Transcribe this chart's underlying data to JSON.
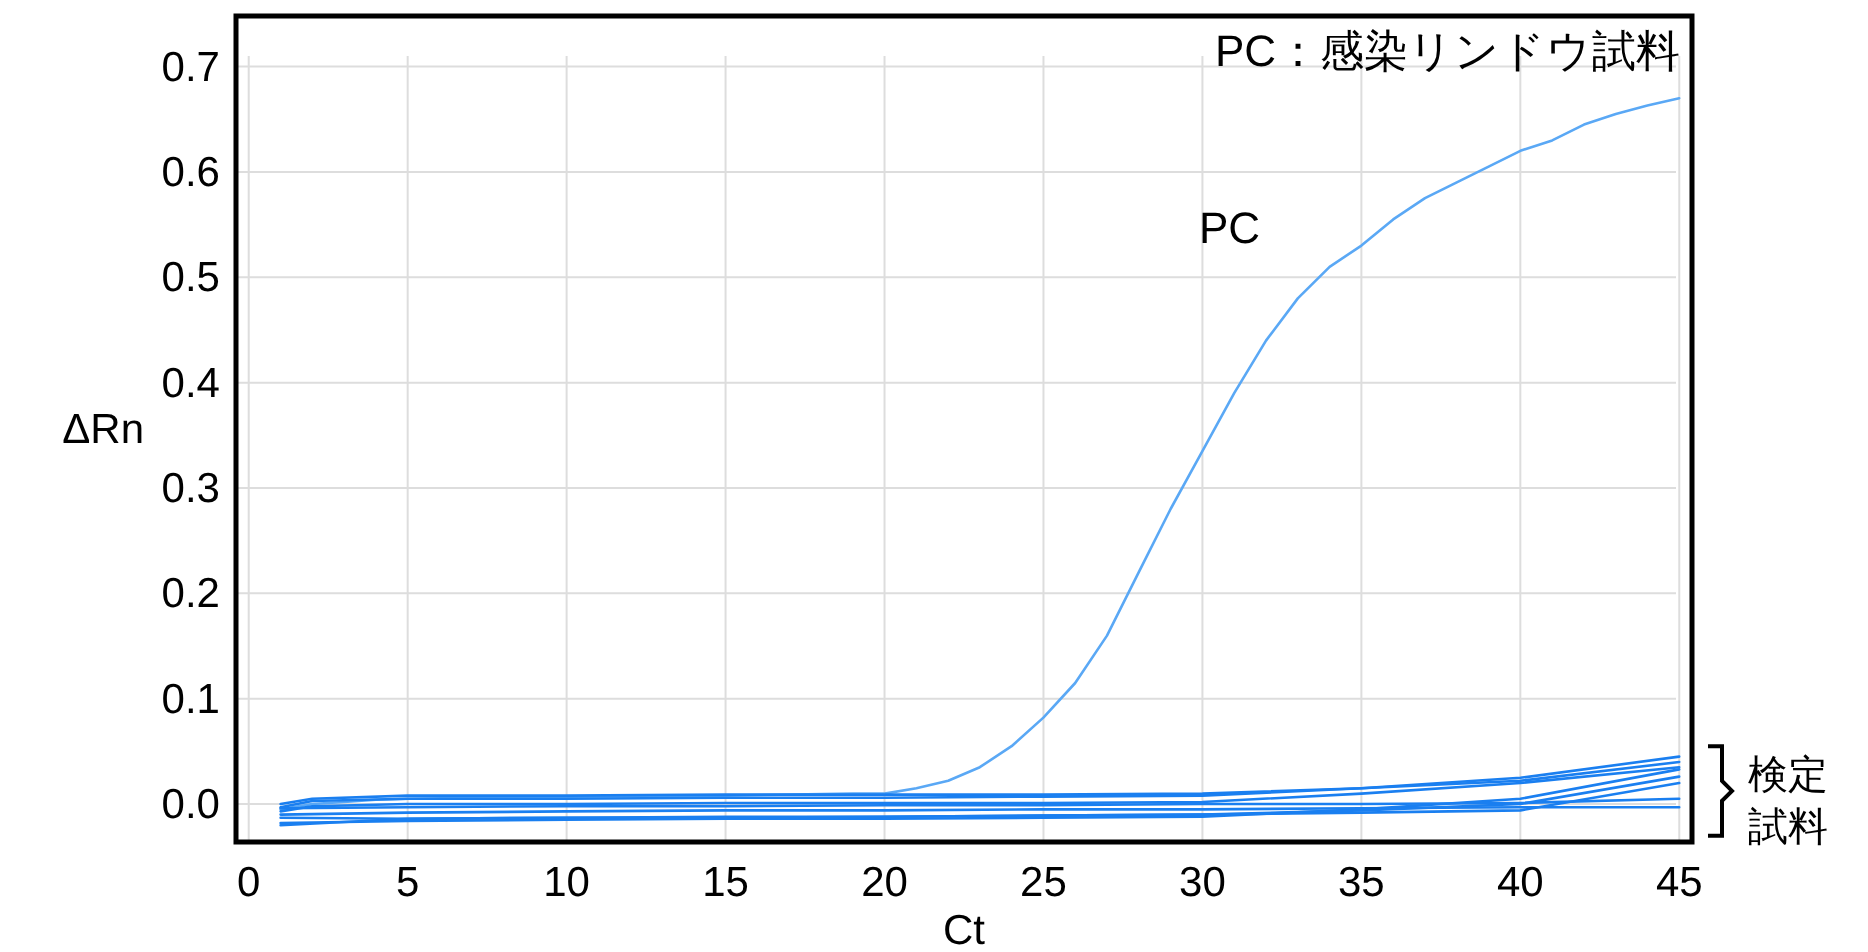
{
  "chart_data": {
    "type": "line",
    "xlabel": "Ct",
    "ylabel": "ΔRn",
    "xlim": [
      -0.4,
      45.4
    ],
    "ylim": [
      -0.036,
      0.748
    ],
    "xticks": [
      0,
      5,
      10,
      15,
      20,
      25,
      30,
      35,
      40,
      45
    ],
    "yticks": [
      {
        "value": 0,
        "label": "0.0"
      },
      {
        "value": 0.1,
        "label": "0.1"
      },
      {
        "value": 0.2,
        "label": "0.2"
      },
      {
        "value": 0.3,
        "label": "0.3"
      },
      {
        "value": 0.4,
        "label": "0.4"
      },
      {
        "value": 0.5,
        "label": "0.5"
      },
      {
        "value": 0.6,
        "label": "0.6"
      },
      {
        "value": 0.7,
        "label": "0.7"
      }
    ],
    "grid": true,
    "line_style": "solid",
    "annotations": [
      "PC：感染リンドウ試料",
      "検定試料"
    ],
    "series": [
      {
        "name": "PC",
        "color": "#5aa8f5",
        "x": [
          1,
          2,
          3,
          4,
          5,
          10,
          15,
          19,
          20,
          21,
          22,
          23,
          24,
          25,
          26,
          27,
          28,
          29,
          30,
          31,
          32,
          33,
          34,
          35,
          36,
          37,
          38,
          39,
          40,
          41,
          42,
          43,
          44,
          45
        ],
        "values": [
          -0.005,
          0.0,
          0.002,
          0.004,
          0.005,
          0.007,
          0.008,
          0.01,
          0.01,
          0.015,
          0.022,
          0.035,
          0.055,
          0.082,
          0.115,
          0.16,
          0.22,
          0.28,
          0.335,
          0.39,
          0.44,
          0.48,
          0.51,
          0.53,
          0.555,
          0.575,
          0.59,
          0.605,
          0.62,
          0.63,
          0.645,
          0.655,
          0.663,
          0.67
        ]
      },
      {
        "color": "#1a7ff0",
        "x": [
          1,
          2,
          5,
          10,
          15,
          20,
          25,
          30,
          35,
          40,
          45
        ],
        "values": [
          0.0,
          0.005,
          0.008,
          0.008,
          0.009,
          0.009,
          0.009,
          0.01,
          0.015,
          0.025,
          0.045
        ]
      },
      {
        "color": "#1a7ff0",
        "x": [
          1,
          2,
          5,
          10,
          15,
          20,
          25,
          30,
          35,
          40,
          45
        ],
        "values": [
          -0.003,
          0.003,
          0.005,
          0.005,
          0.006,
          0.006,
          0.007,
          0.008,
          0.015,
          0.022,
          0.04
        ]
      },
      {
        "color": "#1a7ff0",
        "x": [
          1,
          2,
          5,
          10,
          15,
          20,
          25,
          30,
          35,
          40,
          45
        ],
        "values": [
          -0.007,
          -0.002,
          0.0,
          0.0,
          0.001,
          0.001,
          0.001,
          0.002,
          0.01,
          0.02,
          0.035
        ]
      },
      {
        "color": "#1a7ff0",
        "x": [
          1,
          5,
          10,
          15,
          20,
          25,
          30,
          35,
          40,
          45
        ],
        "values": [
          -0.018,
          -0.016,
          -0.015,
          -0.014,
          -0.014,
          -0.013,
          -0.012,
          -0.005,
          0.005,
          0.033
        ]
      },
      {
        "color": "#1a7ff0",
        "x": [
          1,
          5,
          10,
          15,
          20,
          25,
          30,
          35,
          40,
          45
        ],
        "values": [
          -0.02,
          -0.014,
          -0.013,
          -0.012,
          -0.012,
          -0.011,
          -0.01,
          -0.008,
          -0.006,
          0.02
        ]
      },
      {
        "color": "#1a7ff0",
        "x": [
          1,
          5,
          10,
          15,
          20,
          25,
          30,
          35,
          40,
          45
        ],
        "values": [
          -0.004,
          -0.003,
          -0.002,
          -0.002,
          -0.001,
          -0.001,
          0.0,
          0.0,
          0.001,
          0.005
        ]
      },
      {
        "color": "#1a7ff0",
        "x": [
          1,
          5,
          10,
          15,
          20,
          25,
          30,
          35,
          40,
          45
        ],
        "values": [
          -0.01,
          -0.008,
          -0.007,
          -0.006,
          -0.006,
          -0.005,
          -0.005,
          -0.004,
          -0.003,
          -0.003
        ]
      },
      {
        "color": "#1a7ff0",
        "x": [
          1,
          5,
          10,
          15,
          20,
          25,
          30,
          35,
          40,
          45
        ],
        "values": [
          -0.013,
          -0.014,
          -0.013,
          -0.013,
          -0.012,
          -0.011,
          -0.01,
          -0.006,
          0.0,
          0.026
        ]
      }
    ]
  }
}
